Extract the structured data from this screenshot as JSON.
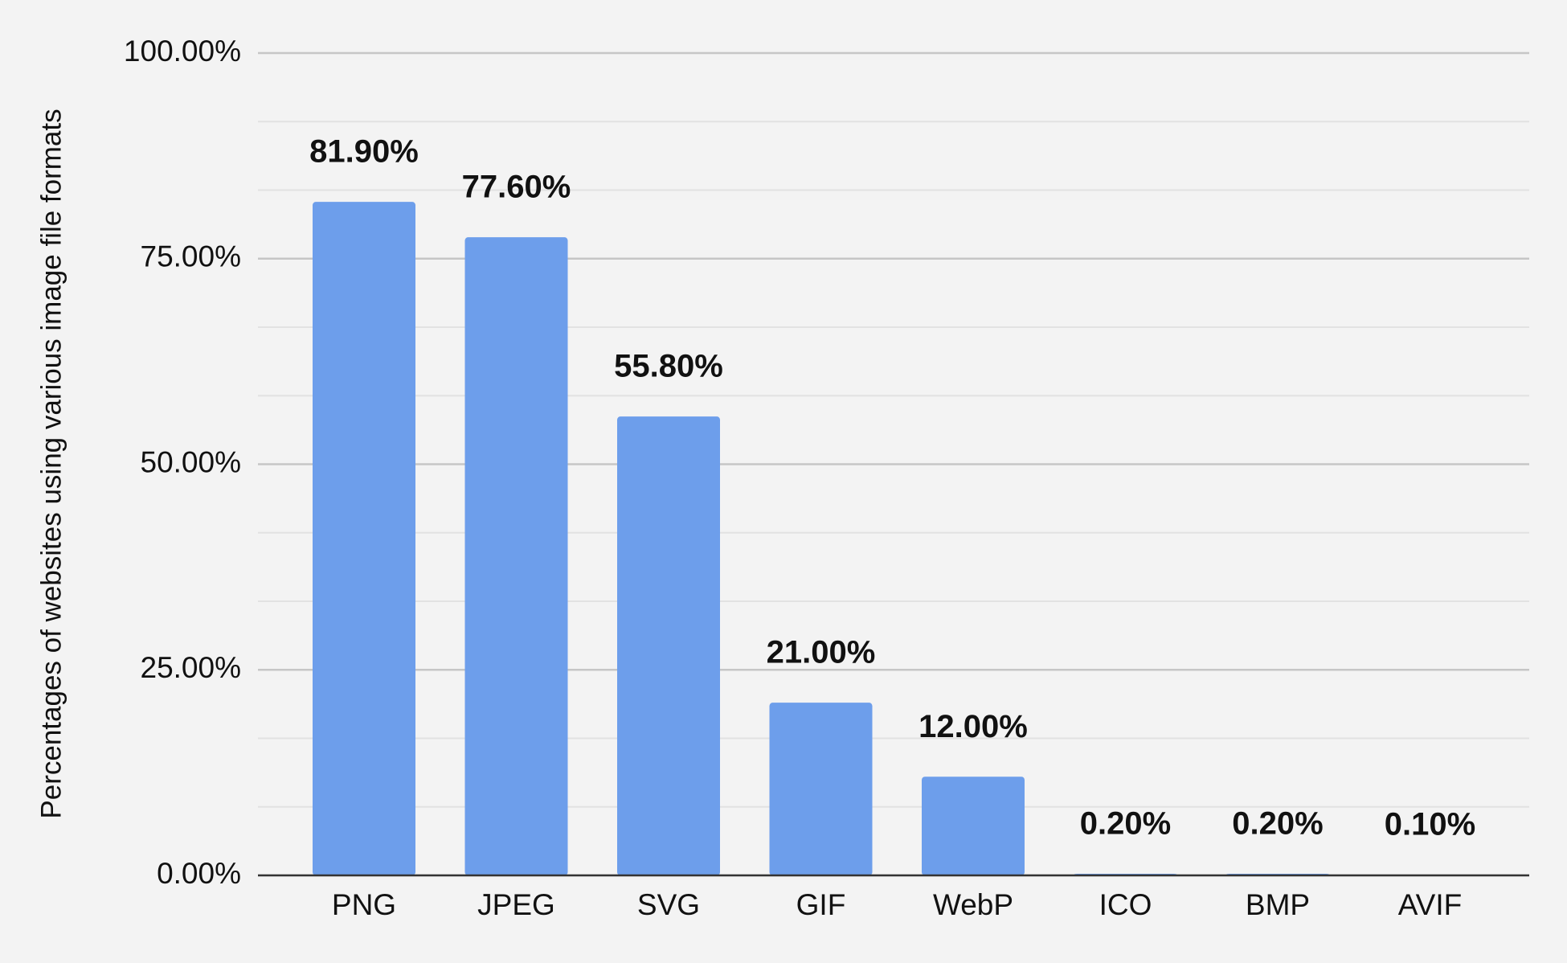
{
  "chart_data": {
    "type": "bar",
    "y_axis_label": "Percentages of websites using various image file formats",
    "categories": [
      "PNG",
      "JPEG",
      "SVG",
      "GIF",
      "WebP",
      "ICO",
      "BMP",
      "AVIF"
    ],
    "values": [
      81.9,
      77.6,
      55.8,
      21,
      12,
      0.2,
      0.2,
      0.1
    ],
    "value_labels": [
      "81.90%",
      "77.60%",
      "55.80%",
      "21.00%",
      "12.00%",
      "0.20%",
      "0.20%",
      "0.10%"
    ],
    "color": "#6d9eeb",
    "ylim": [
      0,
      100
    ],
    "yticks": [
      {
        "value": 0,
        "label": "0.00%"
      },
      {
        "value": 25,
        "label": "25.00%"
      },
      {
        "value": 50,
        "label": "50.00%"
      },
      {
        "value": 75,
        "label": "75.00%"
      },
      {
        "value": 100,
        "label": "100.00%"
      }
    ],
    "minor_yticks": [
      8.33,
      16.67,
      33.33,
      41.67,
      58.33,
      66.67,
      83.33,
      91.67
    ],
    "grid": true
  }
}
